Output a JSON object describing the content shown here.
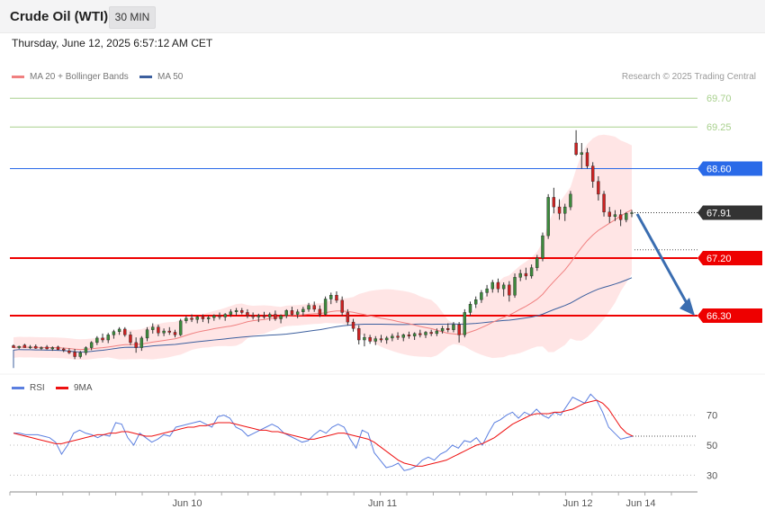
{
  "header": {
    "title": "Crude Oil (WTI)",
    "timeframe": "30 MIN",
    "datetime": "Thursday, June 12, 2025 6:57:12 AM CET"
  },
  "legend": {
    "bb_label": "MA 20 + Bollinger Bands",
    "ma50_label": "MA 50",
    "source": "Research © 2025 Trading Central",
    "rsi_label": "RSI",
    "rsi_ma_label": "9MA"
  },
  "colors": {
    "up": "#3d8a3d",
    "down": "#cc2222",
    "bb_fill": "#ffe0e0",
    "ma20": "#f08080",
    "ma50": "#3c5f9e",
    "support_red": "#ee0000",
    "resistance_blue": "#2a6ae8",
    "target_green": "#a8d08d",
    "rsi": "#5b7fe0",
    "rsi_ma": "#ee1111",
    "arrow": "#3a6db0",
    "current": "#333333"
  },
  "chart_data": [
    {
      "type": "line",
      "name": "price-panel",
      "ylim": [
        65.4,
        69.9
      ],
      "x_ticks": [
        "Jun 10",
        "Jun 11",
        "Jun 12",
        "Jun 14"
      ],
      "levels": [
        {
          "value": 69.7,
          "label": "69.70",
          "kind": "target"
        },
        {
          "value": 69.25,
          "label": "69.25",
          "kind": "target"
        },
        {
          "value": 68.6,
          "label": "68.60",
          "kind": "resistance"
        },
        {
          "value": 67.91,
          "label": "67.91",
          "kind": "current"
        },
        {
          "value": 67.2,
          "label": "67.20",
          "kind": "support"
        },
        {
          "value": 66.3,
          "label": "66.30",
          "kind": "support"
        }
      ],
      "candles": [
        [
          65.83,
          65.85,
          65.81,
          65.8
        ],
        [
          65.8,
          65.83,
          65.78,
          65.82
        ],
        [
          65.84,
          65.86,
          65.8,
          65.8
        ],
        [
          65.8,
          65.84,
          65.78,
          65.81
        ],
        [
          65.82,
          65.85,
          65.78,
          65.79
        ],
        [
          65.79,
          65.82,
          65.76,
          65.8
        ],
        [
          65.81,
          65.84,
          65.77,
          65.78
        ],
        [
          65.78,
          65.82,
          65.75,
          65.8
        ],
        [
          65.81,
          65.83,
          65.76,
          65.77
        ],
        [
          65.78,
          65.8,
          65.73,
          65.76
        ],
        [
          65.75,
          65.79,
          65.7,
          65.72
        ],
        [
          65.73,
          65.78,
          65.62,
          65.66
        ],
        [
          65.66,
          65.75,
          65.63,
          65.72
        ],
        [
          65.72,
          65.82,
          65.68,
          65.8
        ],
        [
          65.8,
          65.9,
          65.76,
          65.88
        ],
        [
          65.88,
          65.98,
          65.84,
          65.95
        ],
        [
          65.95,
          66.02,
          65.88,
          65.92
        ],
        [
          65.92,
          66.03,
          65.87,
          66.0
        ],
        [
          66.0,
          66.08,
          65.94,
          66.05
        ],
        [
          66.05,
          66.12,
          66.0,
          66.09
        ],
        [
          66.09,
          66.12,
          65.97,
          66.0
        ],
        [
          66.0,
          66.05,
          65.84,
          65.88
        ],
        [
          65.88,
          65.96,
          65.72,
          65.8
        ],
        [
          65.8,
          65.98,
          65.75,
          65.95
        ],
        [
          65.95,
          66.12,
          65.9,
          66.08
        ],
        [
          66.08,
          66.18,
          66.02,
          66.12
        ],
        [
          66.12,
          66.16,
          65.98,
          66.03
        ],
        [
          66.03,
          66.1,
          65.98,
          66.06
        ],
        [
          66.06,
          66.12,
          66.0,
          66.04
        ],
        [
          66.04,
          66.08,
          65.96,
          66.0
        ],
        [
          66.0,
          66.25,
          65.98,
          66.22
        ],
        [
          66.22,
          66.3,
          66.18,
          66.26
        ],
        [
          66.26,
          66.32,
          66.2,
          66.24
        ],
        [
          66.24,
          66.3,
          66.18,
          66.28
        ],
        [
          66.28,
          66.32,
          66.2,
          66.25
        ],
        [
          66.25,
          66.3,
          66.18,
          66.27
        ],
        [
          66.27,
          66.32,
          66.22,
          66.3
        ],
        [
          66.3,
          66.35,
          66.24,
          66.28
        ],
        [
          66.28,
          66.34,
          66.22,
          66.32
        ],
        [
          66.32,
          66.4,
          66.28,
          66.36
        ],
        [
          66.36,
          66.42,
          66.3,
          66.38
        ],
        [
          66.38,
          66.42,
          66.32,
          66.35
        ],
        [
          66.35,
          66.4,
          66.26,
          66.3
        ],
        [
          66.3,
          66.35,
          66.24,
          66.28
        ],
        [
          66.28,
          66.33,
          66.2,
          66.3
        ],
        [
          66.3,
          66.36,
          66.25,
          66.28
        ],
        [
          66.28,
          66.35,
          66.22,
          66.32
        ],
        [
          66.32,
          66.38,
          66.22,
          66.25
        ],
        [
          66.25,
          66.32,
          66.18,
          66.3
        ],
        [
          66.3,
          66.4,
          66.26,
          66.38
        ],
        [
          66.38,
          66.44,
          66.3,
          66.32
        ],
        [
          66.32,
          66.4,
          66.26,
          66.36
        ],
        [
          66.36,
          66.44,
          66.3,
          66.4
        ],
        [
          66.4,
          66.5,
          66.36,
          66.46
        ],
        [
          66.46,
          66.52,
          66.36,
          66.4
        ],
        [
          66.4,
          66.46,
          66.28,
          66.32
        ],
        [
          66.32,
          66.6,
          66.3,
          66.56
        ],
        [
          66.56,
          66.66,
          66.48,
          66.62
        ],
        [
          66.62,
          66.68,
          66.5,
          66.54
        ],
        [
          66.54,
          66.6,
          66.3,
          66.35
        ],
        [
          66.35,
          66.4,
          66.15,
          66.2
        ],
        [
          66.2,
          66.25,
          66.05,
          66.1
        ],
        [
          66.1,
          66.15,
          65.85,
          65.92
        ],
        [
          65.92,
          66.02,
          65.82,
          65.96
        ],
        [
          65.96,
          66.0,
          65.86,
          65.9
        ],
        [
          65.9,
          65.98,
          65.84,
          65.94
        ],
        [
          65.94,
          66.0,
          65.88,
          65.92
        ],
        [
          65.92,
          65.98,
          65.86,
          65.95
        ],
        [
          65.95,
          66.02,
          65.9,
          65.98
        ],
        [
          65.98,
          66.04,
          65.92,
          65.96
        ],
        [
          65.96,
          66.02,
          65.9,
          66.0
        ],
        [
          66.0,
          66.05,
          65.94,
          65.98
        ],
        [
          65.98,
          66.04,
          65.92,
          66.02
        ],
        [
          66.02,
          66.08,
          65.96,
          66.0
        ],
        [
          66.0,
          66.06,
          65.95,
          66.04
        ],
        [
          66.04,
          66.08,
          65.98,
          66.02
        ],
        [
          66.02,
          66.1,
          65.98,
          66.06
        ],
        [
          66.06,
          66.14,
          66.02,
          66.1
        ],
        [
          66.1,
          66.18,
          66.04,
          66.08
        ],
        [
          66.08,
          66.2,
          66.04,
          66.16
        ],
        [
          66.16,
          66.2,
          65.88,
          66.0
        ],
        [
          66.0,
          66.4,
          65.96,
          66.35
        ],
        [
          66.35,
          66.52,
          66.3,
          66.48
        ],
        [
          66.48,
          66.6,
          66.42,
          66.55
        ],
        [
          66.55,
          66.7,
          66.5,
          66.66
        ],
        [
          66.66,
          66.78,
          66.6,
          66.72
        ],
        [
          66.72,
          66.86,
          66.66,
          66.82
        ],
        [
          66.82,
          66.88,
          66.66,
          66.72
        ],
        [
          66.72,
          66.82,
          66.6,
          66.78
        ],
        [
          66.78,
          66.84,
          66.52,
          66.62
        ],
        [
          66.62,
          66.96,
          66.58,
          66.9
        ],
        [
          66.9,
          67.02,
          66.84,
          66.96
        ],
        [
          66.96,
          67.05,
          66.86,
          66.92
        ],
        [
          66.92,
          67.1,
          66.88,
          67.05
        ],
        [
          67.05,
          67.25,
          67.0,
          67.2
        ],
        [
          67.2,
          67.6,
          67.15,
          67.55
        ],
        [
          67.55,
          68.2,
          67.5,
          68.15
        ],
        [
          68.15,
          68.3,
          67.9,
          68.0
        ],
        [
          68.0,
          68.12,
          67.8,
          67.9
        ],
        [
          67.9,
          68.05,
          67.78,
          68.0
        ],
        [
          68.0,
          68.25,
          67.95,
          68.2
        ],
        [
          69.0,
          69.2,
          68.8,
          68.82
        ],
        [
          68.82,
          69.0,
          68.6,
          68.85
        ],
        [
          68.85,
          68.92,
          68.6,
          68.64
        ],
        [
          68.64,
          68.7,
          68.3,
          68.4
        ],
        [
          68.4,
          68.48,
          68.1,
          68.2
        ],
        [
          68.2,
          68.25,
          67.85,
          67.92
        ],
        [
          67.92,
          68.0,
          67.75,
          67.85
        ],
        [
          67.85,
          67.95,
          67.78,
          67.88
        ],
        [
          67.88,
          67.96,
          67.7,
          67.8
        ],
        [
          67.8,
          67.92,
          67.76,
          67.9
        ],
        [
          67.9,
          67.95,
          67.84,
          67.91
        ]
      ]
    },
    {
      "type": "line",
      "name": "rsi-panel",
      "ylim": [
        20,
        80
      ],
      "y_ticks": [
        "70",
        "50",
        "30"
      ],
      "series": [
        {
          "name": "RSI",
          "values": [
            58,
            58,
            57,
            57,
            57,
            56,
            55,
            52,
            44,
            50,
            58,
            60,
            58,
            57,
            55,
            57,
            56,
            65,
            64,
            55,
            50,
            58,
            55,
            52,
            54,
            57,
            56,
            62,
            63,
            64,
            65,
            66,
            64,
            62,
            69,
            70,
            68,
            62,
            60,
            56,
            58,
            60,
            62,
            64,
            62,
            58,
            56,
            54,
            52,
            53,
            57,
            60,
            58,
            62,
            64,
            62,
            54,
            48,
            60,
            58,
            45,
            40,
            35,
            36,
            38,
            33,
            34,
            36,
            40,
            42,
            40,
            44,
            46,
            50,
            48,
            53,
            52,
            55,
            50,
            58,
            65,
            67,
            70,
            72,
            68,
            72,
            70,
            74,
            70,
            68,
            72,
            70,
            76,
            82,
            80,
            78,
            84,
            80,
            72,
            62,
            58,
            54,
            55,
            56
          ]
        },
        {
          "name": "9MA",
          "values": [
            58,
            57,
            56,
            55,
            54,
            53,
            52,
            51,
            51,
            52,
            53,
            54,
            55,
            56,
            57,
            57,
            58,
            58,
            59,
            59,
            58,
            57,
            56,
            56,
            57,
            58,
            59,
            60,
            61,
            62,
            62,
            63,
            63,
            64,
            65,
            65,
            65,
            64,
            63,
            62,
            61,
            60,
            60,
            59,
            59,
            58,
            57,
            56,
            55,
            54,
            54,
            55,
            56,
            57,
            58,
            58,
            57,
            56,
            55,
            54,
            52,
            49,
            46,
            43,
            40,
            38,
            37,
            36,
            36,
            37,
            38,
            39,
            40,
            42,
            44,
            46,
            48,
            50,
            51,
            53,
            55,
            58,
            61,
            64,
            66,
            68,
            70,
            71,
            71,
            71,
            72,
            72,
            73,
            74,
            76,
            78,
            79,
            80,
            78,
            74,
            68,
            62,
            58,
            56
          ]
        }
      ]
    }
  ]
}
